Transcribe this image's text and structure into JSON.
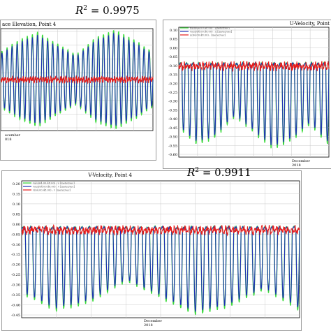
{
  "annotations": {
    "r2_top_label": "R",
    "r2_top_value": "= 0.9975",
    "r2_bottom_label": "R",
    "r2_bottom_value": "= 0.9911"
  },
  "colors": {
    "observed": "#3cdc3c",
    "model_blue": "#1f2fb5",
    "model_red": "#e51c1c",
    "grid": "#c8c8c8",
    "frame": "#000000"
  },
  "chart_data": [
    {
      "type": "line",
      "title": "ace Elevation, Point 4",
      "xlabel_lines": [
        "ecember",
        "018"
      ],
      "series": [
        {
          "name": "",
          "color": "#3cdc3c",
          "role": "observed"
        },
        {
          "name": "",
          "color": "#1f2fb5",
          "role": "model"
        },
        {
          "name": "",
          "color": "#e51c1c",
          "role": "residual"
        }
      ],
      "cycles": 30,
      "envelope": [
        0.55,
        0.8,
        0.95,
        0.7,
        0.5,
        0.85,
        1.0,
        0.8,
        0.55
      ],
      "grid": true,
      "legend": "none"
    },
    {
      "type": "line",
      "title": "U-Velocity, Point",
      "xlabel_lines": [
        "December",
        "2018"
      ],
      "legend": "top-left",
      "legend_entries": [
        "nalu(64.00,48.00) : [meter/sec]",
        "vout(64.00,48.00) : u [meter/sec]",
        "u(64.00,48.00) : [meter/sec]"
      ],
      "yticks": [
        "0.10",
        "0.05",
        "0.00",
        "-0.05",
        "-0.10",
        "-0.15",
        "-0.20",
        "-0.25",
        "-0.30",
        "-0.35",
        "-0.40",
        "-0.45",
        "-0.50",
        "-0.55",
        "-0.60"
      ],
      "ylim": [
        -0.62,
        0.13
      ],
      "cycles": 24,
      "series": [
        {
          "name": "",
          "color": "#3cdc3c",
          "role": "observed"
        },
        {
          "name": "",
          "color": "#1f2fb5",
          "role": "model"
        },
        {
          "name": "",
          "color": "#e51c1c",
          "role": "residual"
        }
      ],
      "grid": true
    },
    {
      "type": "line",
      "title": "V-Velocity, Point 4",
      "xlabel_lines": [
        "December",
        "2018"
      ],
      "legend": "top-left",
      "legend_entries": [
        "valu(64.00,48.00) : v [meter/sec]",
        "vout(64.00,48.00) : v [meter/sec]",
        "v(64.00,48.00) : v [meter/sec]"
      ],
      "yticks": [
        "0.20",
        "0.15",
        "0.10",
        "0.05",
        "0.00",
        "-0.05",
        "-0.10",
        "-0.15",
        "-0.20",
        "-0.25",
        "-0.30",
        "-0.35",
        "-0.40",
        "-0.45"
      ],
      "ylim": [
        -0.45,
        0.22
      ],
      "cycles": 38,
      "series": [
        {
          "name": "",
          "color": "#3cdc3c",
          "role": "observed"
        },
        {
          "name": "",
          "color": "#1f2fb5",
          "role": "model"
        },
        {
          "name": "",
          "color": "#e51c1c",
          "role": "residual"
        }
      ],
      "grid": true
    }
  ]
}
